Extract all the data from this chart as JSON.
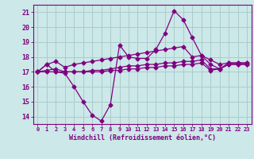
{
  "xlabel": "Windchill (Refroidissement éolien,°C)",
  "x": [
    0,
    1,
    2,
    3,
    4,
    5,
    6,
    7,
    8,
    9,
    10,
    11,
    12,
    13,
    14,
    15,
    16,
    17,
    18,
    19,
    20,
    21,
    22,
    23
  ],
  "line1": [
    17.0,
    17.5,
    17.0,
    16.9,
    16.0,
    15.0,
    14.1,
    13.7,
    14.8,
    18.8,
    18.0,
    17.9,
    17.9,
    18.5,
    19.6,
    21.1,
    20.5,
    19.3,
    18.1,
    17.5,
    17.2,
    17.6,
    17.6,
    17.6
  ],
  "line2": [
    17.0,
    17.5,
    17.7,
    17.3,
    17.5,
    17.6,
    17.7,
    17.8,
    17.9,
    18.0,
    18.1,
    18.2,
    18.3,
    18.4,
    18.5,
    18.6,
    18.7,
    18.0,
    18.1,
    17.8,
    17.5,
    17.6,
    17.6,
    17.6
  ],
  "line3": [
    17.0,
    17.1,
    17.2,
    17.0,
    17.0,
    17.0,
    17.1,
    17.1,
    17.2,
    17.3,
    17.4,
    17.4,
    17.5,
    17.5,
    17.6,
    17.6,
    17.7,
    17.7,
    17.8,
    17.2,
    17.2,
    17.5,
    17.5,
    17.5
  ],
  "line4": [
    17.0,
    17.0,
    17.0,
    17.0,
    17.0,
    17.0,
    17.0,
    17.0,
    17.1,
    17.1,
    17.2,
    17.2,
    17.3,
    17.3,
    17.4,
    17.4,
    17.5,
    17.5,
    17.6,
    17.1,
    17.2,
    17.5,
    17.5,
    17.5
  ],
  "line_color": "#800080",
  "bg_color": "#cce8e8",
  "grid_color": "#aacccc",
  "ylim": [
    13.5,
    21.5
  ],
  "yticks": [
    14,
    15,
    16,
    17,
    18,
    19,
    20,
    21
  ],
  "xlim": [
    -0.5,
    23.5
  ]
}
